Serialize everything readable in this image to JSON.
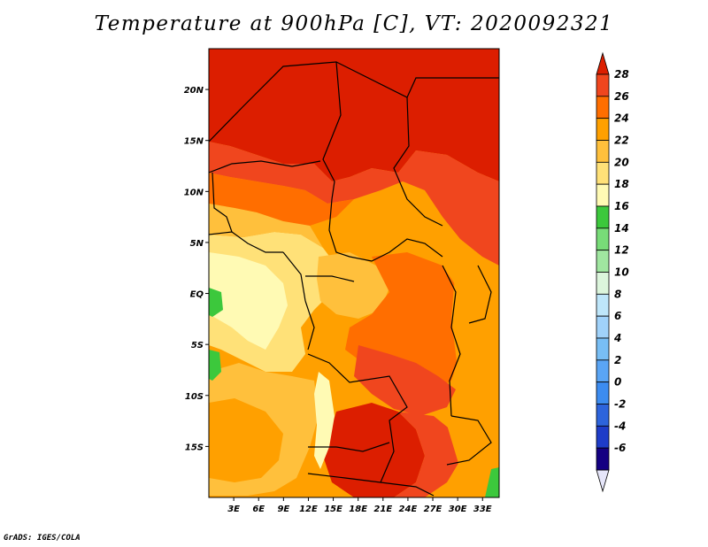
{
  "title": "Temperature at 900hPa [C], VT: 2020092321",
  "footer": "GrADS: IGES/COLA",
  "map": {
    "lon_range": [
      0,
      35
    ],
    "lat_range": [
      -20,
      24
    ],
    "x_ticks": [
      "3E",
      "6E",
      "9E",
      "12E",
      "15E",
      "18E",
      "21E",
      "24E",
      "27E",
      "30E",
      "33E"
    ],
    "y_ticks": [
      "20N",
      "15N",
      "10N",
      "5N",
      "EQ",
      "5S",
      "10S",
      "15S"
    ]
  },
  "colorbar": {
    "levels": [
      "-6",
      "-4",
      "-2",
      "0",
      "2",
      "4",
      "6",
      "8",
      "10",
      "12",
      "14",
      "16",
      "18",
      "20",
      "22",
      "24",
      "26",
      "28"
    ],
    "colors": [
      "#e6e6fa",
      "#140082",
      "#1e3cc8",
      "#2d64dc",
      "#3c8cf0",
      "#5aa5f5",
      "#78bef5",
      "#a0d2fa",
      "#bee6fa",
      "#dcf5dc",
      "#a0e6a0",
      "#78dc78",
      "#3cc83c",
      "#fffab4",
      "#ffe178",
      "#ffc03c",
      "#ffa000",
      "#ff6e00",
      "#f0461e",
      "#dc1e00"
    ]
  }
}
